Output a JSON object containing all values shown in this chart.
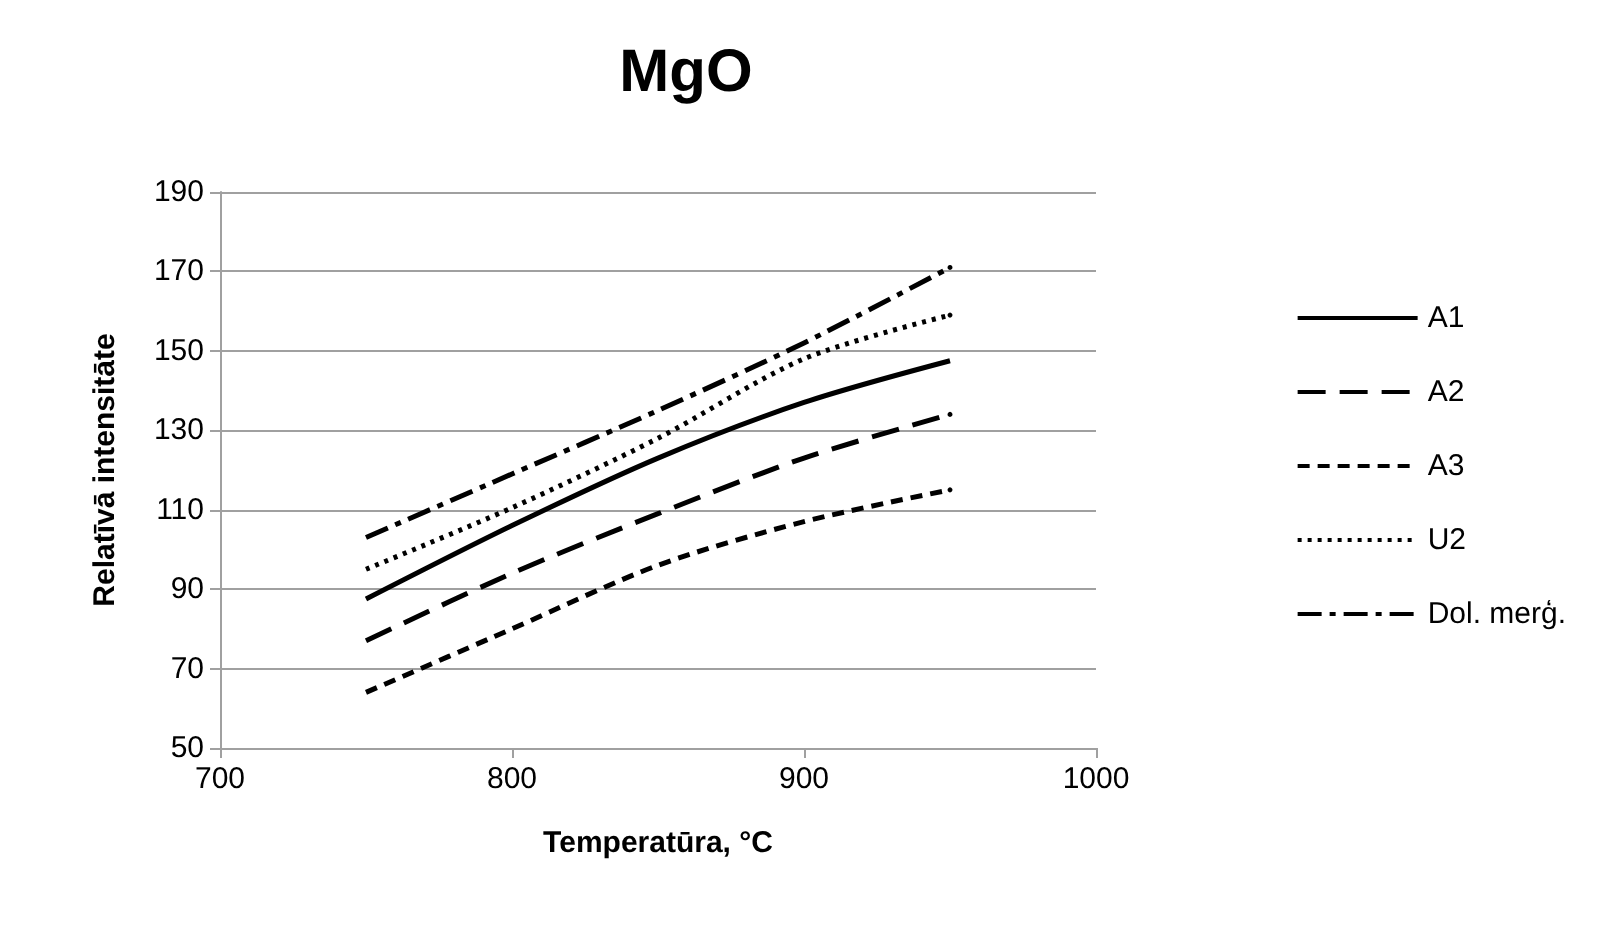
{
  "chart_data": {
    "type": "line",
    "title": "MgO",
    "xlabel": "Temperatūra, °C",
    "ylabel": "Relatīvā intensitāte",
    "x": [
      750,
      800,
      850,
      900,
      950
    ],
    "series": [
      {
        "name": "A1",
        "color": "#000000",
        "line_style": "solid",
        "values": [
          87.5,
          106,
          123,
          137,
          147.5
        ]
      },
      {
        "name": "A2",
        "color": "#000000",
        "line_style": "longdash",
        "values": [
          77,
          94,
          109,
          123,
          134
        ]
      },
      {
        "name": "A3",
        "color": "#000000",
        "line_style": "dashed",
        "values": [
          64,
          80,
          96,
          107,
          115
        ]
      },
      {
        "name": "U2",
        "color": "#000000",
        "line_style": "dotted",
        "values": [
          95,
          110.5,
          128,
          148,
          159
        ]
      },
      {
        "name": "Dol. merģ.",
        "color": "#000000",
        "line_style": "dashdot",
        "values": [
          103,
          119,
          135,
          152,
          171
        ]
      }
    ],
    "xlim": [
      700,
      1000
    ],
    "xticks": [
      700,
      800,
      900,
      {
        "value": 1000,
        "label": "1000"
      }
    ],
    "ylim": [
      50,
      190
    ],
    "yticks": [
      50,
      70,
      90,
      110,
      130,
      150,
      170,
      190
    ],
    "grid": "y",
    "legend": "right",
    "marker": "none"
  }
}
